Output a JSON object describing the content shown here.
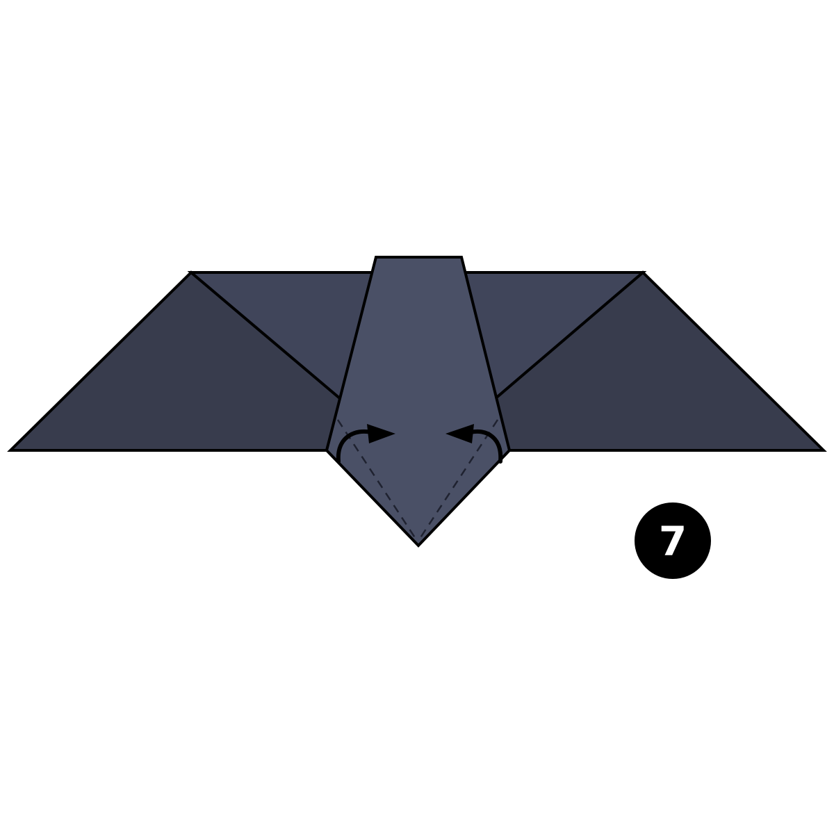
{
  "diagram": {
    "colors": {
      "background": "#ffffff",
      "outline": "#000000",
      "wing_outer": "#383c4d",
      "wing_inner": "#40455a",
      "body": "#4a5066",
      "fold_line": "#1f2230",
      "arrow": "#000000",
      "badge_fill": "#000000",
      "badge_text": "#ffffff"
    },
    "step": {
      "number": "7"
    },
    "icons": {
      "left_fold_arrow": "curved-arrow-right-icon",
      "right_fold_arrow": "curved-arrow-left-icon"
    }
  }
}
